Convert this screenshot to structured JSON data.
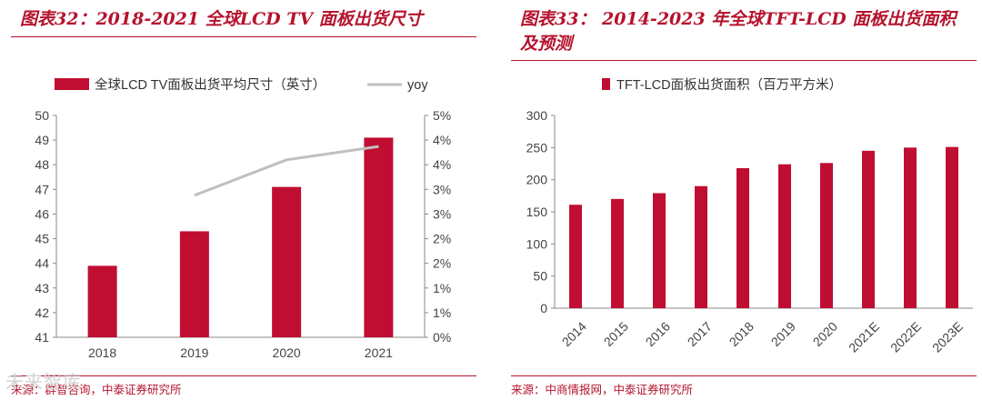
{
  "left": {
    "title": "图表32：2018-2021 全球LCD TV 面板出货尺寸",
    "source": "来源：群智咨询，中泰证券研究所",
    "chart_data": {
      "type": "bar",
      "categories": [
        "2018",
        "2019",
        "2020",
        "2021"
      ],
      "series": [
        {
          "name": "全球LCD TV面板出货平均尺寸（英寸）",
          "type": "bar",
          "axis": "left",
          "color": "#c00d32",
          "values": [
            43.9,
            45.3,
            47.1,
            49.1
          ]
        },
        {
          "name": "yoy",
          "type": "line",
          "axis": "right",
          "color": "#bfbfbf",
          "values": [
            null,
            3.2,
            4.0,
            4.3
          ]
        }
      ],
      "y_left": {
        "min": 41,
        "max": 50,
        "ticks": [
          "41",
          "42",
          "43",
          "44",
          "45",
          "46",
          "47",
          "48",
          "49",
          "50"
        ]
      },
      "y_right": {
        "min": 0,
        "max": 5,
        "ticks": [
          "0%",
          "1%",
          "1%",
          "2%",
          "2%",
          "3%",
          "3%",
          "4%",
          "4%",
          "5%"
        ]
      },
      "grid": false,
      "legend": "top"
    }
  },
  "right": {
    "title": "图表33： 2014-2023 年全球TFT-LCD 面板出货面积及预测",
    "source": "来源：中商情报网，中泰证券研究所",
    "chart_data": {
      "type": "bar",
      "categories": [
        "2014",
        "2015",
        "2016",
        "2017",
        "2018",
        "2019",
        "2020",
        "2021E",
        "2022E",
        "2023E"
      ],
      "series": [
        {
          "name": "TFT-LCD面板出货面积（百万平方米）",
          "color": "#c00d32",
          "values": [
            161,
            170,
            179,
            190,
            218,
            224,
            226,
            245,
            250,
            251
          ]
        }
      ],
      "ylim": [
        0,
        300
      ],
      "yticks": [
        "0",
        "50",
        "100",
        "150",
        "200",
        "250",
        "300"
      ],
      "grid": false,
      "legend": "top"
    }
  },
  "watermark": "未来智库"
}
